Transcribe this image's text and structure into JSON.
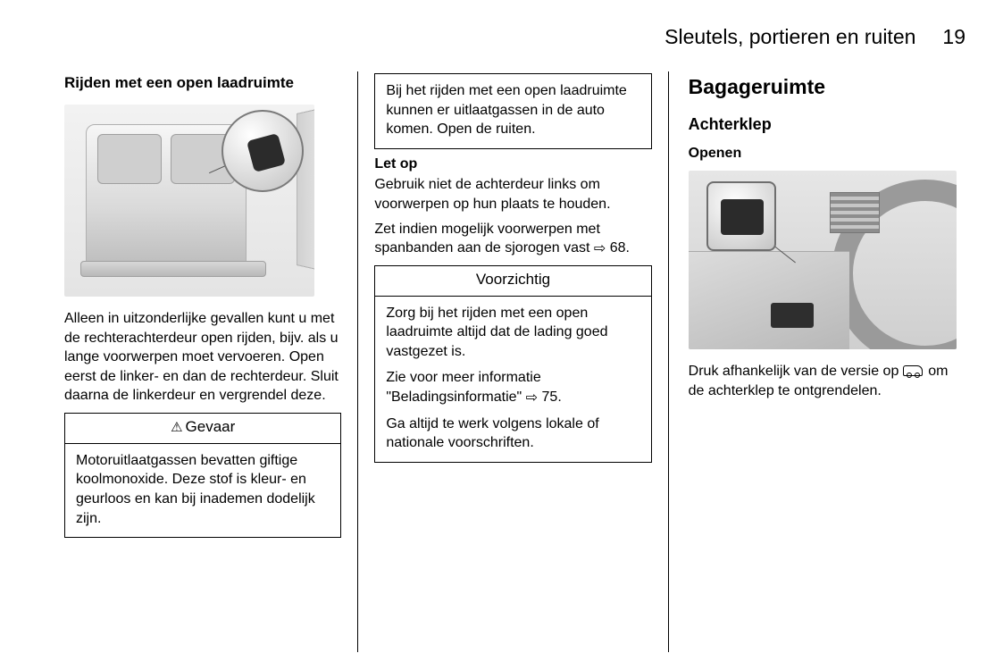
{
  "header": {
    "title": "Sleutels, portieren en ruiten",
    "page": "19"
  },
  "col1": {
    "section_title": "Rijden met een open laadruimte",
    "para1": "Alleen in uitzonderlijke gevallen kunt u met de rechterachterdeur open rijden, bijv. als u lange voorwerpen moet vervoeren. Open eerst de linker- en dan de rechterdeur. Sluit daarna de linkerdeur en vergrendel deze.",
    "danger_title": "Gevaar",
    "danger_para1": "Motoruitlaatgassen bevatten giftige koolmonoxide. Deze stof is kleur- en geurloos en kan bij inademen dodelijk zijn."
  },
  "col2": {
    "box_top_para": "Bij het rijden met een open laadruimte kunnen er uitlaatgassen in de auto komen. Open de ruiten.",
    "note_label": "Let op",
    "note_para1": "Gebruik niet de achterdeur links om voorwerpen op hun plaats te houden.",
    "note_para2_a": "Zet indien mogelijk voorwerpen met spanbanden aan de sjorogen vast ",
    "note_ref": "68.",
    "caution_title": "Voorzichtig",
    "caution_p1": "Zorg bij het rijden met een open laadruimte altijd dat de lading goed vastgezet is.",
    "caution_p2_a": "Zie voor meer informatie \"Beladingsinformatie\" ",
    "caution_p2_ref": "75.",
    "caution_p3": "Ga altijd te werk volgens lokale of nationale voorschriften."
  },
  "col3": {
    "h1": "Bagageruimte",
    "h2": "Achterklep",
    "h3": "Openen",
    "para_a": "Druk afhankelijk van de versie op ",
    "para_b": " om de achterklep te ontgrendelen."
  }
}
